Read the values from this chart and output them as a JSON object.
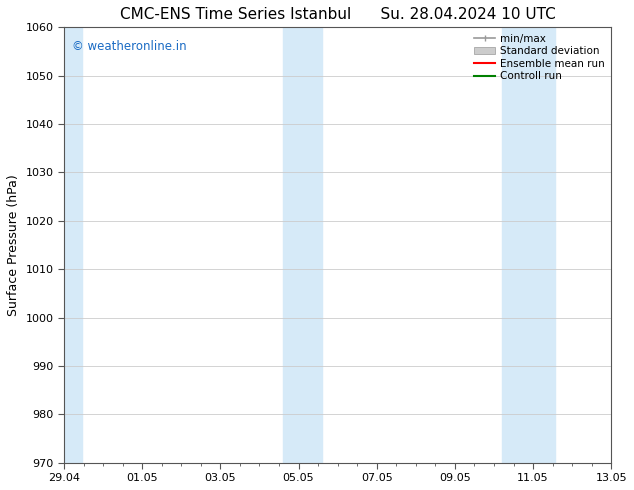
{
  "title": "CMC-ENS Time Series Istanbul",
  "title_date": "Su. 28.04.2024 10 UTC",
  "ylabel": "Surface Pressure (hPa)",
  "ylim": [
    970,
    1060
  ],
  "yticks": [
    970,
    980,
    990,
    1000,
    1010,
    1020,
    1030,
    1040,
    1050,
    1060
  ],
  "x_tick_labels": [
    "29.04",
    "01.05",
    "03.05",
    "05.05",
    "07.05",
    "09.05",
    "11.05",
    "13.05"
  ],
  "x_tick_positions": [
    0,
    2,
    4,
    6,
    8,
    10,
    12,
    14
  ],
  "x_minor_tick_spacing": 0.5,
  "shaded_bands": [
    {
      "x_start": 0.0,
      "x_end": 0.45
    },
    {
      "x_start": 5.6,
      "x_end": 6.6
    },
    {
      "x_start": 11.2,
      "x_end": 12.55
    }
  ],
  "shade_color": "#d6eaf8",
  "watermark_text": "© weatheronline.in",
  "watermark_color": "#1a6bc4",
  "legend_entries": [
    {
      "label": "min/max",
      "color": "#aaaaaa",
      "style": "minmax"
    },
    {
      "label": "Standard deviation",
      "color": "#cccccc",
      "style": "fill"
    },
    {
      "label": "Ensemble mean run",
      "color": "red",
      "style": "line"
    },
    {
      "label": "Controll run",
      "color": "green",
      "style": "line"
    }
  ],
  "background_color": "#ffffff",
  "grid_color": "#cccccc",
  "title_fontsize": 11,
  "tick_fontsize": 8,
  "ylabel_fontsize": 9,
  "legend_fontsize": 7.5,
  "x_min": 0,
  "x_max": 14
}
